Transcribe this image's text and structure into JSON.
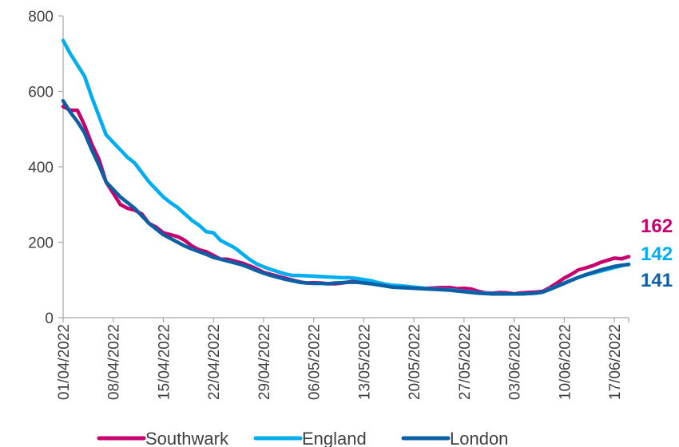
{
  "chart_data": {
    "type": "line",
    "title": "",
    "xlabel": "",
    "ylabel": "",
    "ylim": [
      0,
      800
    ],
    "y_ticks": [
      "0",
      "200",
      "400",
      "600",
      "800"
    ],
    "x_tick_labels": [
      "01/04/2022",
      "08/04/2022",
      "15/04/2022",
      "22/04/2022",
      "29/04/2022",
      "06/05/2022",
      "13/05/2022",
      "20/05/2022",
      "27/05/2022",
      "03/06/2022",
      "10/06/2022",
      "17/06/2022"
    ],
    "x_start": "01/04/2022",
    "x_end": "18/06/2022",
    "grid": false,
    "legend_position": "bottom",
    "series": [
      {
        "name": "Southwark",
        "color": "#C8006E",
        "end_label": "162",
        "points": [
          [
            0,
            560
          ],
          [
            1,
            550
          ],
          [
            2,
            550
          ],
          [
            3,
            510
          ],
          [
            4,
            460
          ],
          [
            5,
            420
          ],
          [
            6,
            360
          ],
          [
            7,
            330
          ],
          [
            8,
            300
          ],
          [
            9,
            290
          ],
          [
            10,
            285
          ],
          [
            11,
            275
          ],
          [
            12,
            250
          ],
          [
            13,
            240
          ],
          [
            14,
            225
          ],
          [
            15,
            220
          ],
          [
            16,
            215
          ],
          [
            17,
            205
          ],
          [
            18,
            190
          ],
          [
            19,
            180
          ],
          [
            20,
            175
          ],
          [
            21,
            165
          ],
          [
            22,
            155
          ],
          [
            23,
            155
          ],
          [
            24,
            150
          ],
          [
            25,
            145
          ],
          [
            26,
            138
          ],
          [
            27,
            130
          ],
          [
            28,
            120
          ],
          [
            29,
            115
          ],
          [
            30,
            110
          ],
          [
            31,
            105
          ],
          [
            32,
            100
          ],
          [
            33,
            95
          ],
          [
            34,
            92
          ],
          [
            35,
            93
          ],
          [
            36,
            92
          ],
          [
            37,
            90
          ],
          [
            38,
            90
          ],
          [
            39,
            92
          ],
          [
            40,
            95
          ],
          [
            41,
            97
          ],
          [
            42,
            96
          ],
          [
            43,
            93
          ],
          [
            44,
            89
          ],
          [
            45,
            86
          ],
          [
            46,
            83
          ],
          [
            47,
            82
          ],
          [
            48,
            80
          ],
          [
            49,
            79
          ],
          [
            50,
            78
          ],
          [
            51,
            78
          ],
          [
            52,
            79
          ],
          [
            53,
            80
          ],
          [
            54,
            80
          ],
          [
            55,
            77
          ],
          [
            56,
            78
          ],
          [
            57,
            76
          ],
          [
            58,
            70
          ],
          [
            59,
            66
          ],
          [
            60,
            65
          ],
          [
            61,
            67
          ],
          [
            62,
            66
          ],
          [
            63,
            63
          ],
          [
            64,
            66
          ],
          [
            65,
            67
          ],
          [
            66,
            68
          ],
          [
            67,
            70
          ],
          [
            68,
            80
          ],
          [
            69,
            92
          ],
          [
            70,
            105
          ],
          [
            71,
            115
          ],
          [
            72,
            127
          ],
          [
            73,
            132
          ],
          [
            74,
            138
          ],
          [
            75,
            146
          ],
          [
            76,
            152
          ],
          [
            77,
            158
          ],
          [
            78,
            156
          ],
          [
            79,
            162
          ]
        ]
      },
      {
        "name": "England",
        "color": "#00AEEF",
        "end_label": "142",
        "points": [
          [
            0,
            735
          ],
          [
            1,
            700
          ],
          [
            2,
            670
          ],
          [
            3,
            640
          ],
          [
            4,
            585
          ],
          [
            5,
            535
          ],
          [
            6,
            485
          ],
          [
            7,
            465
          ],
          [
            8,
            445
          ],
          [
            9,
            425
          ],
          [
            10,
            410
          ],
          [
            11,
            385
          ],
          [
            12,
            360
          ],
          [
            13,
            340
          ],
          [
            14,
            320
          ],
          [
            15,
            305
          ],
          [
            16,
            292
          ],
          [
            17,
            275
          ],
          [
            18,
            258
          ],
          [
            19,
            245
          ],
          [
            20,
            228
          ],
          [
            21,
            225
          ],
          [
            22,
            205
          ],
          [
            23,
            195
          ],
          [
            24,
            185
          ],
          [
            25,
            170
          ],
          [
            26,
            155
          ],
          [
            27,
            143
          ],
          [
            28,
            135
          ],
          [
            29,
            128
          ],
          [
            30,
            122
          ],
          [
            31,
            116
          ],
          [
            32,
            112
          ],
          [
            33,
            112
          ],
          [
            34,
            111
          ],
          [
            35,
            110
          ],
          [
            36,
            109
          ],
          [
            37,
            108
          ],
          [
            38,
            107
          ],
          [
            39,
            106
          ],
          [
            40,
            106
          ],
          [
            41,
            104
          ],
          [
            42,
            101
          ],
          [
            43,
            98
          ],
          [
            44,
            93
          ],
          [
            45,
            89
          ],
          [
            46,
            86
          ],
          [
            47,
            85
          ],
          [
            48,
            83
          ],
          [
            49,
            81
          ],
          [
            50,
            79
          ],
          [
            51,
            77
          ],
          [
            52,
            76
          ],
          [
            53,
            75
          ],
          [
            54,
            74
          ],
          [
            55,
            72
          ],
          [
            56,
            70
          ],
          [
            57,
            68
          ],
          [
            58,
            66
          ],
          [
            59,
            65
          ],
          [
            60,
            64
          ],
          [
            61,
            64
          ],
          [
            62,
            63
          ],
          [
            63,
            63
          ],
          [
            64,
            63
          ],
          [
            65,
            64
          ],
          [
            66,
            65
          ],
          [
            67,
            68
          ],
          [
            68,
            76
          ],
          [
            69,
            84
          ],
          [
            70,
            92
          ],
          [
            71,
            100
          ],
          [
            72,
            107
          ],
          [
            73,
            113
          ],
          [
            74,
            118
          ],
          [
            75,
            123
          ],
          [
            76,
            128
          ],
          [
            77,
            133
          ],
          [
            78,
            138
          ],
          [
            79,
            142
          ]
        ]
      },
      {
        "name": "London",
        "color": "#0B5FA5",
        "end_label": "141",
        "points": [
          [
            0,
            575
          ],
          [
            1,
            545
          ],
          [
            2,
            520
          ],
          [
            3,
            490
          ],
          [
            4,
            445
          ],
          [
            5,
            405
          ],
          [
            6,
            360
          ],
          [
            7,
            340
          ],
          [
            8,
            320
          ],
          [
            9,
            305
          ],
          [
            10,
            290
          ],
          [
            11,
            270
          ],
          [
            12,
            250
          ],
          [
            13,
            235
          ],
          [
            14,
            220
          ],
          [
            15,
            210
          ],
          [
            16,
            200
          ],
          [
            17,
            190
          ],
          [
            18,
            182
          ],
          [
            19,
            175
          ],
          [
            20,
            168
          ],
          [
            21,
            160
          ],
          [
            22,
            155
          ],
          [
            23,
            150
          ],
          [
            24,
            145
          ],
          [
            25,
            140
          ],
          [
            26,
            133
          ],
          [
            27,
            125
          ],
          [
            28,
            118
          ],
          [
            29,
            112
          ],
          [
            30,
            107
          ],
          [
            31,
            102
          ],
          [
            32,
            98
          ],
          [
            33,
            94
          ],
          [
            34,
            92
          ],
          [
            35,
            91
          ],
          [
            36,
            91
          ],
          [
            37,
            90
          ],
          [
            38,
            92
          ],
          [
            39,
            93
          ],
          [
            40,
            94
          ],
          [
            41,
            94
          ],
          [
            42,
            92
          ],
          [
            43,
            90
          ],
          [
            44,
            87
          ],
          [
            45,
            84
          ],
          [
            46,
            81
          ],
          [
            47,
            80
          ],
          [
            48,
            79
          ],
          [
            49,
            78
          ],
          [
            50,
            77
          ],
          [
            51,
            76
          ],
          [
            52,
            75
          ],
          [
            53,
            74
          ],
          [
            54,
            73
          ],
          [
            55,
            71
          ],
          [
            56,
            69
          ],
          [
            57,
            67
          ],
          [
            58,
            65
          ],
          [
            59,
            64
          ],
          [
            60,
            63
          ],
          [
            61,
            63
          ],
          [
            62,
            63
          ],
          [
            63,
            63
          ],
          [
            64,
            63
          ],
          [
            65,
            64
          ],
          [
            66,
            65
          ],
          [
            67,
            68
          ],
          [
            68,
            75
          ],
          [
            69,
            83
          ],
          [
            70,
            91
          ],
          [
            71,
            99
          ],
          [
            72,
            107
          ],
          [
            73,
            114
          ],
          [
            74,
            120
          ],
          [
            75,
            126
          ],
          [
            76,
            131
          ],
          [
            77,
            136
          ],
          [
            78,
            139
          ],
          [
            79,
            141
          ]
        ]
      }
    ]
  }
}
